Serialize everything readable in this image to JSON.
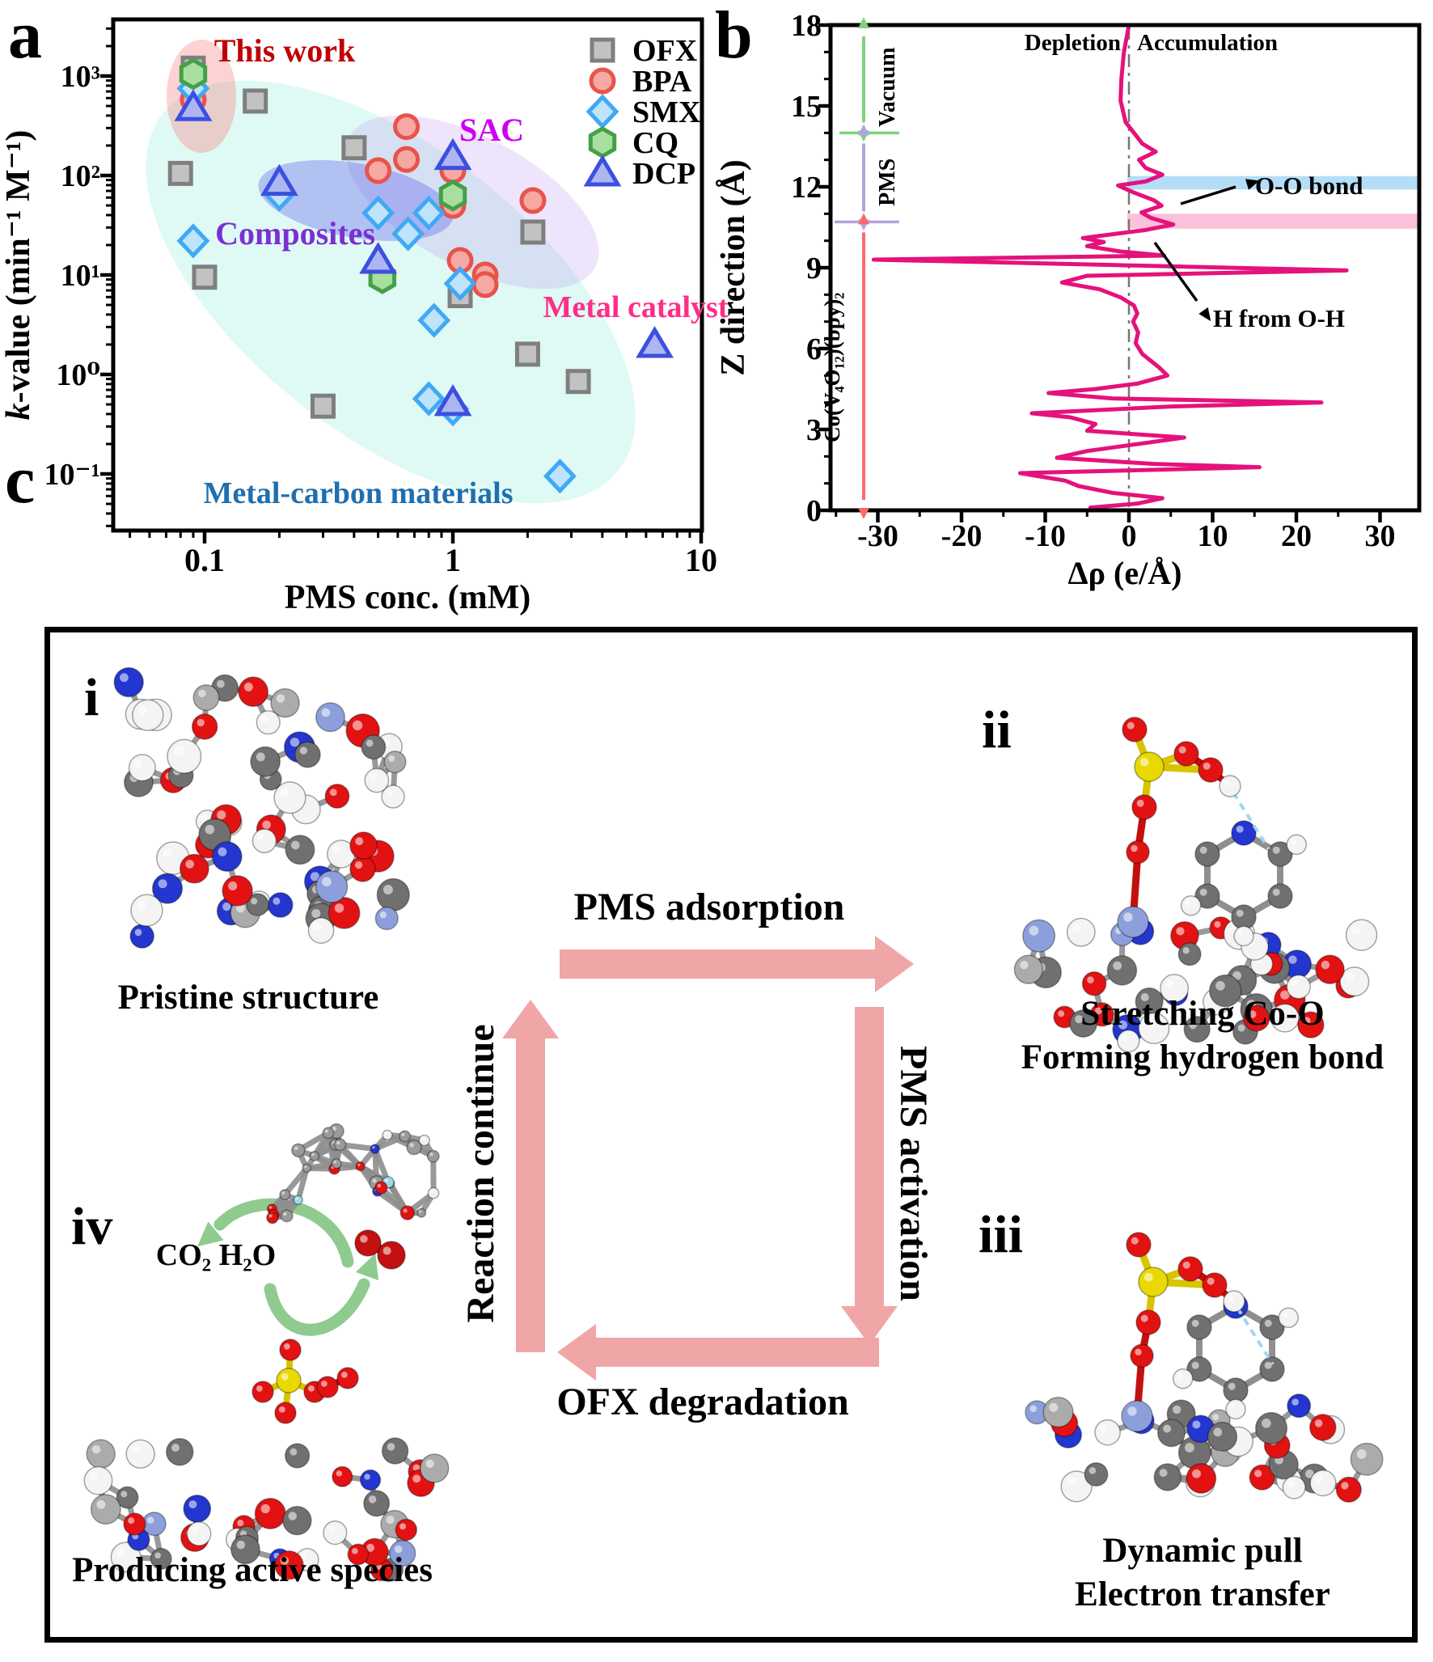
{
  "figure": {
    "panel_a_letter": "a",
    "panel_b_letter": "b",
    "panel_c_letter": "c"
  },
  "panel_a": {
    "xlabel": "PMS conc. (mM)",
    "ylabel": "k-value (min⁻¹ M⁻¹)",
    "x_ticks": [
      "0.1",
      "1",
      "10"
    ],
    "y_ticks": [
      "10⁻¹",
      "10⁰",
      "10¹",
      "10²",
      "10³"
    ],
    "legend": [
      {
        "label": "OFX",
        "marker": "square",
        "fill": "#c2c2c2",
        "stroke": "#7f7f7f"
      },
      {
        "label": "BPA",
        "marker": "circle",
        "fill": "#f6a8a3",
        "stroke": "#e8534b"
      },
      {
        "label": "SMX",
        "marker": "diamond",
        "fill": "#bfe3fa",
        "stroke": "#3fa9f5"
      },
      {
        "label": "CQ",
        "marker": "hexagon",
        "fill": "#a8dfa0",
        "stroke": "#43a047"
      },
      {
        "label": "DCP",
        "marker": "triangle",
        "fill": "#aeb6f2",
        "stroke": "#3b4fe0"
      }
    ],
    "regions": [
      {
        "label": "This work",
        "text_color": "#c00000"
      },
      {
        "label": "SAC",
        "text_color": "#cc00ee"
      },
      {
        "label": "Composites",
        "text_color": "#7b2fd4"
      },
      {
        "label": "Metal catalyst",
        "text_color": "#ff2d8a"
      },
      {
        "label": "Metal-carbon materials",
        "text_color": "#1f6fb0"
      }
    ],
    "chart_data": {
      "type": "scatter",
      "title": "",
      "xlabel": "PMS conc. (mM)",
      "ylabel": "k-value (min⁻¹ M⁻¹)",
      "x_scale": "log",
      "y_scale": "log",
      "xlim": [
        0.05,
        10
      ],
      "ylim": [
        0.03,
        4000
      ],
      "series": [
        {
          "name": "OFX",
          "marker": "square",
          "points": [
            [
              0.09,
              1200
            ],
            [
              0.16,
              560
            ],
            [
              0.08,
              105
            ],
            [
              0.1,
              9.5
            ],
            [
              0.4,
              190
            ],
            [
              1.07,
              6.2
            ],
            [
              2.1,
              27
            ],
            [
              2.0,
              1.6
            ],
            [
              3.2,
              0.85
            ],
            [
              0.3,
              0.48
            ]
          ]
        },
        {
          "name": "BPA",
          "marker": "circle",
          "points": [
            [
              0.09,
              580
            ],
            [
              0.65,
              310
            ],
            [
              0.65,
              145
            ],
            [
              0.5,
              112
            ],
            [
              1.0,
              112
            ],
            [
              1.0,
              50
            ],
            [
              1.07,
              14
            ],
            [
              1.35,
              10
            ],
            [
              1.35,
              8
            ],
            [
              2.1,
              56
            ]
          ]
        },
        {
          "name": "SMX",
          "marker": "diamond",
          "points": [
            [
              0.09,
              750
            ],
            [
              0.09,
              22
            ],
            [
              0.2,
              65
            ],
            [
              0.5,
              42
            ],
            [
              0.8,
              42
            ],
            [
              0.66,
              26
            ],
            [
              1.07,
              8.2
            ],
            [
              0.84,
              3.5
            ],
            [
              0.8,
              0.57
            ],
            [
              1.0,
              0.45
            ],
            [
              2.7,
              0.095
            ]
          ]
        },
        {
          "name": "CQ",
          "marker": "hexagon",
          "points": [
            [
              0.09,
              1050
            ],
            [
              1.0,
              63
            ],
            [
              0.52,
              9.3
            ]
          ]
        },
        {
          "name": "DCP",
          "marker": "triangle",
          "points": [
            [
              0.09,
              480
            ],
            [
              0.2,
              85
            ],
            [
              1.0,
              155
            ],
            [
              0.5,
              14
            ],
            [
              1.0,
              0.52
            ],
            [
              6.5,
              2.0
            ]
          ]
        }
      ]
    }
  },
  "panel_b": {
    "xlabel": "Δρ (e/Å)",
    "ylabel": "Z direction (Å)",
    "x_ticks": [
      "-30",
      "-20",
      "-10",
      "0",
      "10",
      "20",
      "30"
    ],
    "y_ticks": [
      "0",
      "3",
      "6",
      "9",
      "12",
      "15",
      "18"
    ],
    "top_labels": {
      "left": "Depletion",
      "right": "Accumulation"
    },
    "side_regions": [
      {
        "label": "Vacuum",
        "color": "#7ed47e",
        "z_range": [
          14,
          18
        ]
      },
      {
        "label": "PMS",
        "color": "#b3a3e0",
        "z_range": [
          10.7,
          14
        ]
      },
      {
        "label": "Co(V₄O₁₂)(bpy)₂",
        "color": "#fb6a6a",
        "z_range": [
          0,
          10.7
        ]
      }
    ],
    "band_annotations": [
      {
        "label": "O-O bond",
        "band_color": "#b5ddf7",
        "z_range": [
          11.9,
          12.4
        ]
      },
      {
        "label": "H from O-H",
        "band_color": "#fbc0da",
        "z_range": [
          10.45,
          11.0
        ]
      }
    ],
    "chart_data": {
      "type": "line",
      "curve_color": "#e4127c",
      "xlabel": "Δρ (e/Å)",
      "ylabel": "Z direction (Å)",
      "xlim": [
        -36,
        35
      ],
      "ylim": [
        0,
        18
      ],
      "grid": false,
      "points_drho_z": [
        [
          0,
          18
        ],
        [
          -0.6,
          17
        ],
        [
          -0.9,
          16
        ],
        [
          -1,
          15.2
        ],
        [
          -0.4,
          14.4
        ],
        [
          0.6,
          14
        ],
        [
          1.6,
          13.6
        ],
        [
          3.2,
          13.3
        ],
        [
          1.2,
          13
        ],
        [
          2,
          12.7
        ],
        [
          4,
          12.45
        ],
        [
          2,
          12.2
        ],
        [
          -1.3,
          12.05
        ],
        [
          0.5,
          11.8
        ],
        [
          3,
          11.5
        ],
        [
          3.9,
          11.3
        ],
        [
          1.5,
          11.05
        ],
        [
          2.6,
          10.85
        ],
        [
          5.3,
          10.6
        ],
        [
          2,
          10.4
        ],
        [
          -5.5,
          10.1
        ],
        [
          -3,
          9.95
        ],
        [
          -5,
          9.8
        ],
        [
          -1,
          9.6
        ],
        [
          4.2,
          9.45
        ],
        [
          -30.5,
          9.3
        ],
        [
          -2,
          9.1
        ],
        [
          26,
          8.9
        ],
        [
          -5,
          8.7
        ],
        [
          -8,
          8.45
        ],
        [
          -3.5,
          8.2
        ],
        [
          -1,
          7.9
        ],
        [
          0.6,
          7.6
        ],
        [
          1,
          7.3
        ],
        [
          0.5,
          7
        ],
        [
          1.1,
          6.6
        ],
        [
          0.8,
          6.2
        ],
        [
          1.6,
          5.8
        ],
        [
          3.6,
          5.3
        ],
        [
          4.6,
          5
        ],
        [
          1,
          4.7
        ],
        [
          -4,
          4.5
        ],
        [
          -9.6,
          4.35
        ],
        [
          -2,
          4.15
        ],
        [
          23,
          4
        ],
        [
          5,
          3.85
        ],
        [
          -11.6,
          3.6
        ],
        [
          -7,
          3.45
        ],
        [
          -4,
          3.2
        ],
        [
          -5,
          2.95
        ],
        [
          6.6,
          2.7
        ],
        [
          2,
          2.5
        ],
        [
          -5,
          2.2
        ],
        [
          -8.6,
          1.95
        ],
        [
          3,
          1.72
        ],
        [
          15.6,
          1.6
        ],
        [
          -13,
          1.38
        ],
        [
          -7.6,
          1.1
        ],
        [
          -6,
          0.9
        ],
        [
          -2,
          0.65
        ],
        [
          4,
          0.45
        ],
        [
          1,
          0.25
        ],
        [
          -4.6,
          0.1
        ]
      ]
    }
  },
  "panel_c": {
    "cycle": {
      "top": "PMS adsorption",
      "right": "PMS activation",
      "bottom": "OFX degradation",
      "left": "Reaction continue",
      "arrow_color": "#f0a6a6"
    },
    "steps": [
      {
        "id": "i",
        "caption": "Pristine structure"
      },
      {
        "id": "ii",
        "caption_line1": "Stretching Co-O",
        "caption_line2": "Forming hydrogen bond"
      },
      {
        "id": "iii",
        "caption_line1": "Dynamic pull",
        "caption_line2": "Electron transfer"
      },
      {
        "id": "iv",
        "caption": "Producing active species",
        "byproducts": "CO₂ H₂O"
      }
    ]
  }
}
